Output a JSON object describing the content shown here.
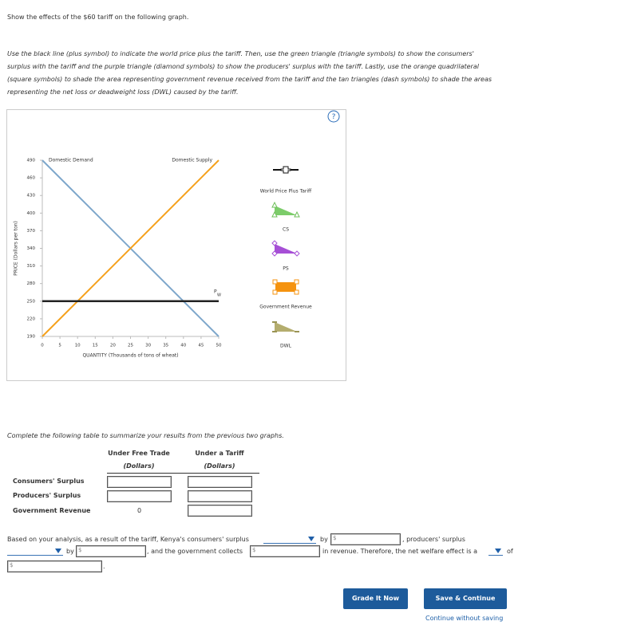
{
  "header": {
    "prompt": "Show the effects of the $60 tariff on the following graph."
  },
  "instructions": [
    "Use the black line (plus symbol) to indicate the world price plus the tariff. Then, use the green triangle (triangle symbols) to show the consumers'",
    "surplus with the tariff and the purple triangle (diamond symbols) to show the producers' surplus with the tariff. Lastly, use the orange quadrilateral",
    "(square symbols) to shade the area representing government revenue received from the tariff and the tan triangles (dash symbols) to shade the areas",
    "representing the net loss or deadweight loss (DWL) caused by the tariff."
  ],
  "help": "?",
  "chart_data": {
    "type": "line",
    "x_label": "QUANTITY (Thousands of tons of wheat)",
    "y_label": "PRICE (Dollars per ton)",
    "x": [
      0,
      50
    ],
    "series": [
      {
        "name": "Domestic Demand",
        "color": "#7ea7cb",
        "values": [
          490,
          190
        ]
      },
      {
        "name": "Domestic Supply",
        "color": "#f5a11c",
        "values": [
          190,
          490
        ]
      }
    ],
    "world_price": {
      "label": "P",
      "subscript": "W",
      "color": "#222222",
      "values": [
        250,
        250
      ]
    },
    "xlim": [
      0,
      50
    ],
    "ylim": [
      190,
      490
    ],
    "xticks": [
      0,
      5,
      10,
      15,
      20,
      25,
      30,
      35,
      40,
      45,
      50
    ],
    "yticks": [
      190,
      220,
      250,
      280,
      310,
      340,
      370,
      400,
      430,
      460,
      490
    ]
  },
  "legend": [
    "World Price Plus Tariff",
    "CS",
    "PS",
    "Government Revenue",
    "DWL"
  ],
  "table_intro": "Complete the following table to summarize your results from the previous two graphs.",
  "table": {
    "columns": [
      {
        "title": "Under Free Trade",
        "unit": "(Dollars)"
      },
      {
        "title": "Under a Tariff",
        "unit": "(Dollars)"
      }
    ],
    "rows": [
      "Consumers' Surplus",
      "Producers' Surplus",
      "Government Revenue"
    ],
    "free_trade_government_revenue": 0
  },
  "currency": "$",
  "summary": [
    "Based on your analysis, as a result of the tariff, Kenya's consumers' surplus",
    "by",
    ", producers' surplus",
    "by",
    ", and the government collects",
    "in revenue. Therefore, the net welfare effect is a",
    "of",
    "."
  ],
  "buttons": {
    "grade": "Grade It Now",
    "save": "Save & Continue",
    "skip": "Continue without saving"
  }
}
